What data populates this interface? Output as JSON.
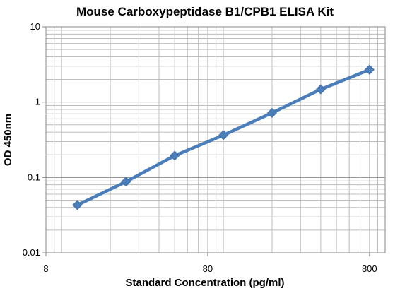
{
  "chart_data": {
    "type": "line",
    "title": "Mouse Carboxypeptidase B1/CPB1 ELISA Kit",
    "xlabel": "Standard Concentration (pg/ml)",
    "ylabel": "OD 450nm",
    "x_scale": "log",
    "y_scale": "log",
    "xlim": [
      8,
      1000
    ],
    "ylim": [
      0.01,
      10
    ],
    "x_ticks": [
      8,
      80,
      800
    ],
    "x_tick_labels": [
      "8",
      "80",
      "800"
    ],
    "y_ticks": [
      0.01,
      0.1,
      1,
      10
    ],
    "y_tick_labels": [
      "0.01",
      "0.1",
      "1",
      "10"
    ],
    "grid": true,
    "legend": "none",
    "series": [
      {
        "color": "#4a7ebb",
        "marker": "diamond",
        "x": [
          12.5,
          25,
          50,
          100,
          200,
          400,
          800
        ],
        "y": [
          0.043,
          0.088,
          0.195,
          0.365,
          0.72,
          1.48,
          2.7
        ]
      }
    ]
  }
}
